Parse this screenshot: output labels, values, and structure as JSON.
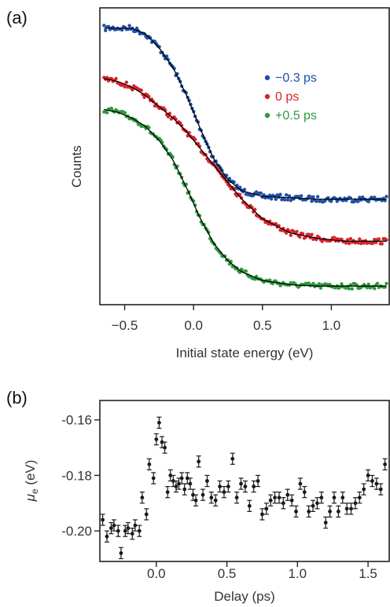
{
  "chart_data": [
    {
      "panel_label": "(a)",
      "type": "scatter",
      "xlabel": "Initial state energy (eV)",
      "ylabel": "Counts",
      "xlim": [
        -0.68,
        1.42
      ],
      "ylim": [
        0,
        1
      ],
      "xticks": [
        -0.5,
        0.0,
        0.5,
        1.0
      ],
      "xtick_labels": [
        "−0.5",
        "0.0",
        "0.5",
        "1.0"
      ],
      "y_tick_labels": false,
      "grid": false,
      "legend_position": "right, upper-middle",
      "series": [
        {
          "name": "−0.3 ps",
          "color": "#1f4fa8",
          "fit_color": "#000000",
          "x": [
            -0.65,
            -0.55,
            -0.45,
            -0.35,
            -0.25,
            -0.15,
            -0.05,
            0.05,
            0.15,
            0.25,
            0.35,
            0.5,
            0.7,
            0.9,
            1.1,
            1.3,
            1.4
          ],
          "y": [
            0.95,
            0.95,
            0.95,
            0.93,
            0.88,
            0.81,
            0.71,
            0.59,
            0.48,
            0.41,
            0.37,
            0.35,
            0.345,
            0.34,
            0.34,
            0.34,
            0.34
          ]
        },
        {
          "name": "0 ps",
          "color": "#d8232a",
          "fit_color": "#000000",
          "x": [
            -0.65,
            -0.55,
            -0.45,
            -0.35,
            -0.25,
            -0.15,
            -0.05,
            0.05,
            0.15,
            0.25,
            0.35,
            0.5,
            0.7,
            0.9,
            1.1,
            1.3,
            1.4
          ],
          "y": [
            0.77,
            0.76,
            0.74,
            0.71,
            0.67,
            0.63,
            0.58,
            0.52,
            0.46,
            0.4,
            0.34,
            0.27,
            0.22,
            0.2,
            0.19,
            0.19,
            0.19
          ]
        },
        {
          "name": "+0.5 ps",
          "color": "#2e9a3c",
          "fit_color": "#000000",
          "x": [
            -0.65,
            -0.55,
            -0.45,
            -0.35,
            -0.25,
            -0.15,
            -0.05,
            0.05,
            0.15,
            0.25,
            0.35,
            0.5,
            0.7,
            0.9,
            1.1,
            1.3,
            1.4
          ],
          "y": [
            0.66,
            0.65,
            0.63,
            0.6,
            0.55,
            0.48,
            0.38,
            0.27,
            0.18,
            0.12,
            0.08,
            0.05,
            0.035,
            0.03,
            0.03,
            0.03,
            0.03
          ]
        }
      ]
    },
    {
      "panel_label": "(b)",
      "type": "scatter",
      "xlabel": "Delay (ps)",
      "ylabel": "μ",
      "ylabel_subscript": "e",
      "ylabel_unit": " (eV)",
      "xlim": [
        -0.4,
        1.65
      ],
      "ylim": [
        -0.211,
        -0.153
      ],
      "xticks": [
        0.0,
        0.5,
        1.0,
        1.5
      ],
      "xtick_labels": [
        "0.0",
        "0.5",
        "1.0",
        "1.5"
      ],
      "yticks": [
        -0.2,
        -0.18,
        -0.16
      ],
      "ytick_labels": [
        "-0.20",
        "-0.18",
        "-0.16"
      ],
      "grid": false,
      "color": "#1a1a1a",
      "error": 0.002,
      "x": [
        -0.38,
        -0.35,
        -0.32,
        -0.3,
        -0.27,
        -0.25,
        -0.22,
        -0.2,
        -0.17,
        -0.15,
        -0.12,
        -0.1,
        -0.07,
        -0.05,
        -0.02,
        0.0,
        0.02,
        0.04,
        0.06,
        0.08,
        0.1,
        0.12,
        0.14,
        0.16,
        0.18,
        0.2,
        0.22,
        0.24,
        0.26,
        0.28,
        0.3,
        0.33,
        0.36,
        0.39,
        0.42,
        0.45,
        0.48,
        0.51,
        0.54,
        0.57,
        0.6,
        0.63,
        0.66,
        0.69,
        0.72,
        0.75,
        0.78,
        0.81,
        0.84,
        0.87,
        0.9,
        0.93,
        0.96,
        0.99,
        1.02,
        1.05,
        1.08,
        1.11,
        1.14,
        1.17,
        1.2,
        1.23,
        1.26,
        1.29,
        1.32,
        1.35,
        1.38,
        1.41,
        1.44,
        1.47,
        1.5,
        1.53,
        1.56,
        1.59,
        1.62
      ],
      "y": [
        -0.196,
        -0.202,
        -0.199,
        -0.198,
        -0.2,
        -0.208,
        -0.2,
        -0.199,
        -0.201,
        -0.198,
        -0.2,
        -0.188,
        -0.194,
        -0.176,
        -0.181,
        -0.167,
        -0.161,
        -0.168,
        -0.17,
        -0.186,
        -0.18,
        -0.182,
        -0.184,
        -0.183,
        -0.181,
        -0.185,
        -0.181,
        -0.183,
        -0.187,
        -0.189,
        -0.175,
        -0.187,
        -0.182,
        -0.188,
        -0.189,
        -0.184,
        -0.186,
        -0.184,
        -0.174,
        -0.188,
        -0.183,
        -0.184,
        -0.191,
        -0.184,
        -0.182,
        -0.194,
        -0.192,
        -0.189,
        -0.188,
        -0.188,
        -0.19,
        -0.187,
        -0.189,
        -0.193,
        -0.183,
        -0.186,
        -0.193,
        -0.191,
        -0.19,
        -0.188,
        -0.197,
        -0.193,
        -0.188,
        -0.193,
        -0.188,
        -0.192,
        -0.192,
        -0.19,
        -0.188,
        -0.185,
        -0.18,
        -0.182,
        -0.183,
        -0.185,
        -0.176
      ]
    }
  ]
}
